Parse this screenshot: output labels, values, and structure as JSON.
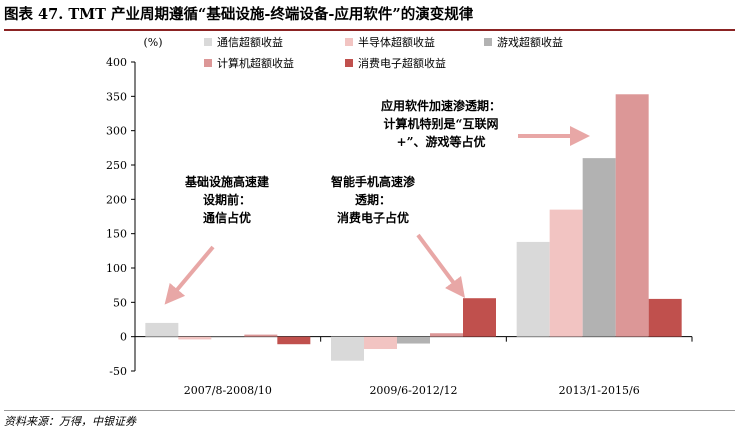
{
  "header": {
    "title": "图表 47. TMT 产业周期遵循“基础设施-终端设备-应用软件”的演变规律"
  },
  "footer": {
    "source": "资料来源：万得，中银证券"
  },
  "chart_data": {
    "type": "bar",
    "ylabel": "(%)",
    "ylim": [
      -50,
      400
    ],
    "yticks": [
      -50,
      0,
      50,
      100,
      150,
      200,
      250,
      300,
      350,
      400
    ],
    "grid": false,
    "legend_position": "top",
    "categories": [
      "2007/8-2008/10",
      "2009/6-2012/12",
      "2013/1-2015/6"
    ],
    "series": [
      {
        "name": "通信超额收益",
        "color": "#d9d9d9",
        "values": [
          20,
          -35,
          138
        ]
      },
      {
        "name": "半导体超额收益",
        "color": "#f2c4c2",
        "values": [
          -4,
          -18,
          185
        ]
      },
      {
        "name": "游戏超额收益",
        "color": "#b2b2b2",
        "values": [
          0,
          -10,
          260
        ]
      },
      {
        "name": "计算机超额收益",
        "color": "#dc9797",
        "values": [
          3,
          5,
          353
        ]
      },
      {
        "name": "消费电子超额收益",
        "color": "#c0504d",
        "values": [
          -11,
          56,
          55
        ]
      }
    ],
    "annotations": [
      {
        "lines": [
          "基础设施高速建",
          "设期前：",
          "通信占优"
        ]
      },
      {
        "lines": [
          "智能手机高速渗",
          "透期：",
          "消费电子占优"
        ]
      },
      {
        "lines": [
          "应用软件加速渗透期：",
          "计算机特别是“互联网",
          "+”、游戏等占优"
        ]
      }
    ],
    "arrow_color": "#e8a7a6"
  }
}
